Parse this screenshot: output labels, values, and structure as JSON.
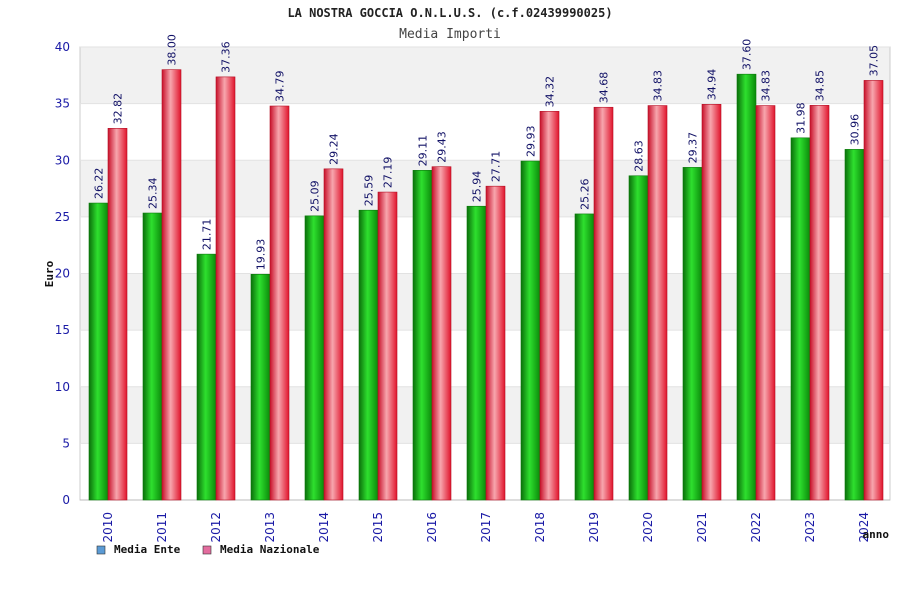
{
  "chart_data": {
    "type": "bar",
    "title": "LA NOSTRA GOCCIA O.N.L.U.S. (c.f.02439990025)",
    "subtitle": "Media Importi",
    "xlabel": "anno",
    "ylabel": "Euro",
    "ylim": [
      0,
      40
    ],
    "yticks": [
      "0",
      "5",
      "10",
      "15",
      "20",
      "25",
      "30",
      "35",
      "40"
    ],
    "categories": [
      "2010",
      "2011",
      "2012",
      "2013",
      "2014",
      "2015",
      "2016",
      "2017",
      "2018",
      "2019",
      "2020",
      "2021",
      "2022",
      "2023",
      "2024"
    ],
    "series": [
      {
        "name": "Media Ente",
        "color": "#12b212",
        "values": [
          26.22,
          25.34,
          21.71,
          19.93,
          25.09,
          25.59,
          29.11,
          25.94,
          29.93,
          25.26,
          28.63,
          29.37,
          37.6,
          31.98,
          30.96
        ],
        "labels": [
          "26.22",
          "25.34",
          "21.71",
          "19.93",
          "25.09",
          "25.59",
          "29.11",
          "25.94",
          "29.93",
          "25.26",
          "28.63",
          "29.37",
          "37.60",
          "31.98",
          "30.96"
        ]
      },
      {
        "name": "Media Nazionale",
        "color": "#e8283c",
        "values": [
          32.82,
          38.0,
          37.36,
          34.79,
          29.24,
          27.19,
          29.43,
          27.71,
          34.32,
          34.68,
          34.83,
          34.94,
          34.83,
          34.85,
          37.05
        ],
        "labels": [
          "32.82",
          "38.00",
          "37.36",
          "34.79",
          "29.24",
          "27.19",
          "29.43",
          "27.71",
          "34.32",
          "34.68",
          "34.83",
          "34.94",
          "34.83",
          "34.85",
          "37.05"
        ]
      }
    ],
    "legend": {
      "position": "bottom-left",
      "items": [
        {
          "label": "Media Ente",
          "color": "#5b9bd5"
        },
        {
          "label": "Media Nazionale",
          "color": "#e36c9e"
        }
      ]
    }
  }
}
